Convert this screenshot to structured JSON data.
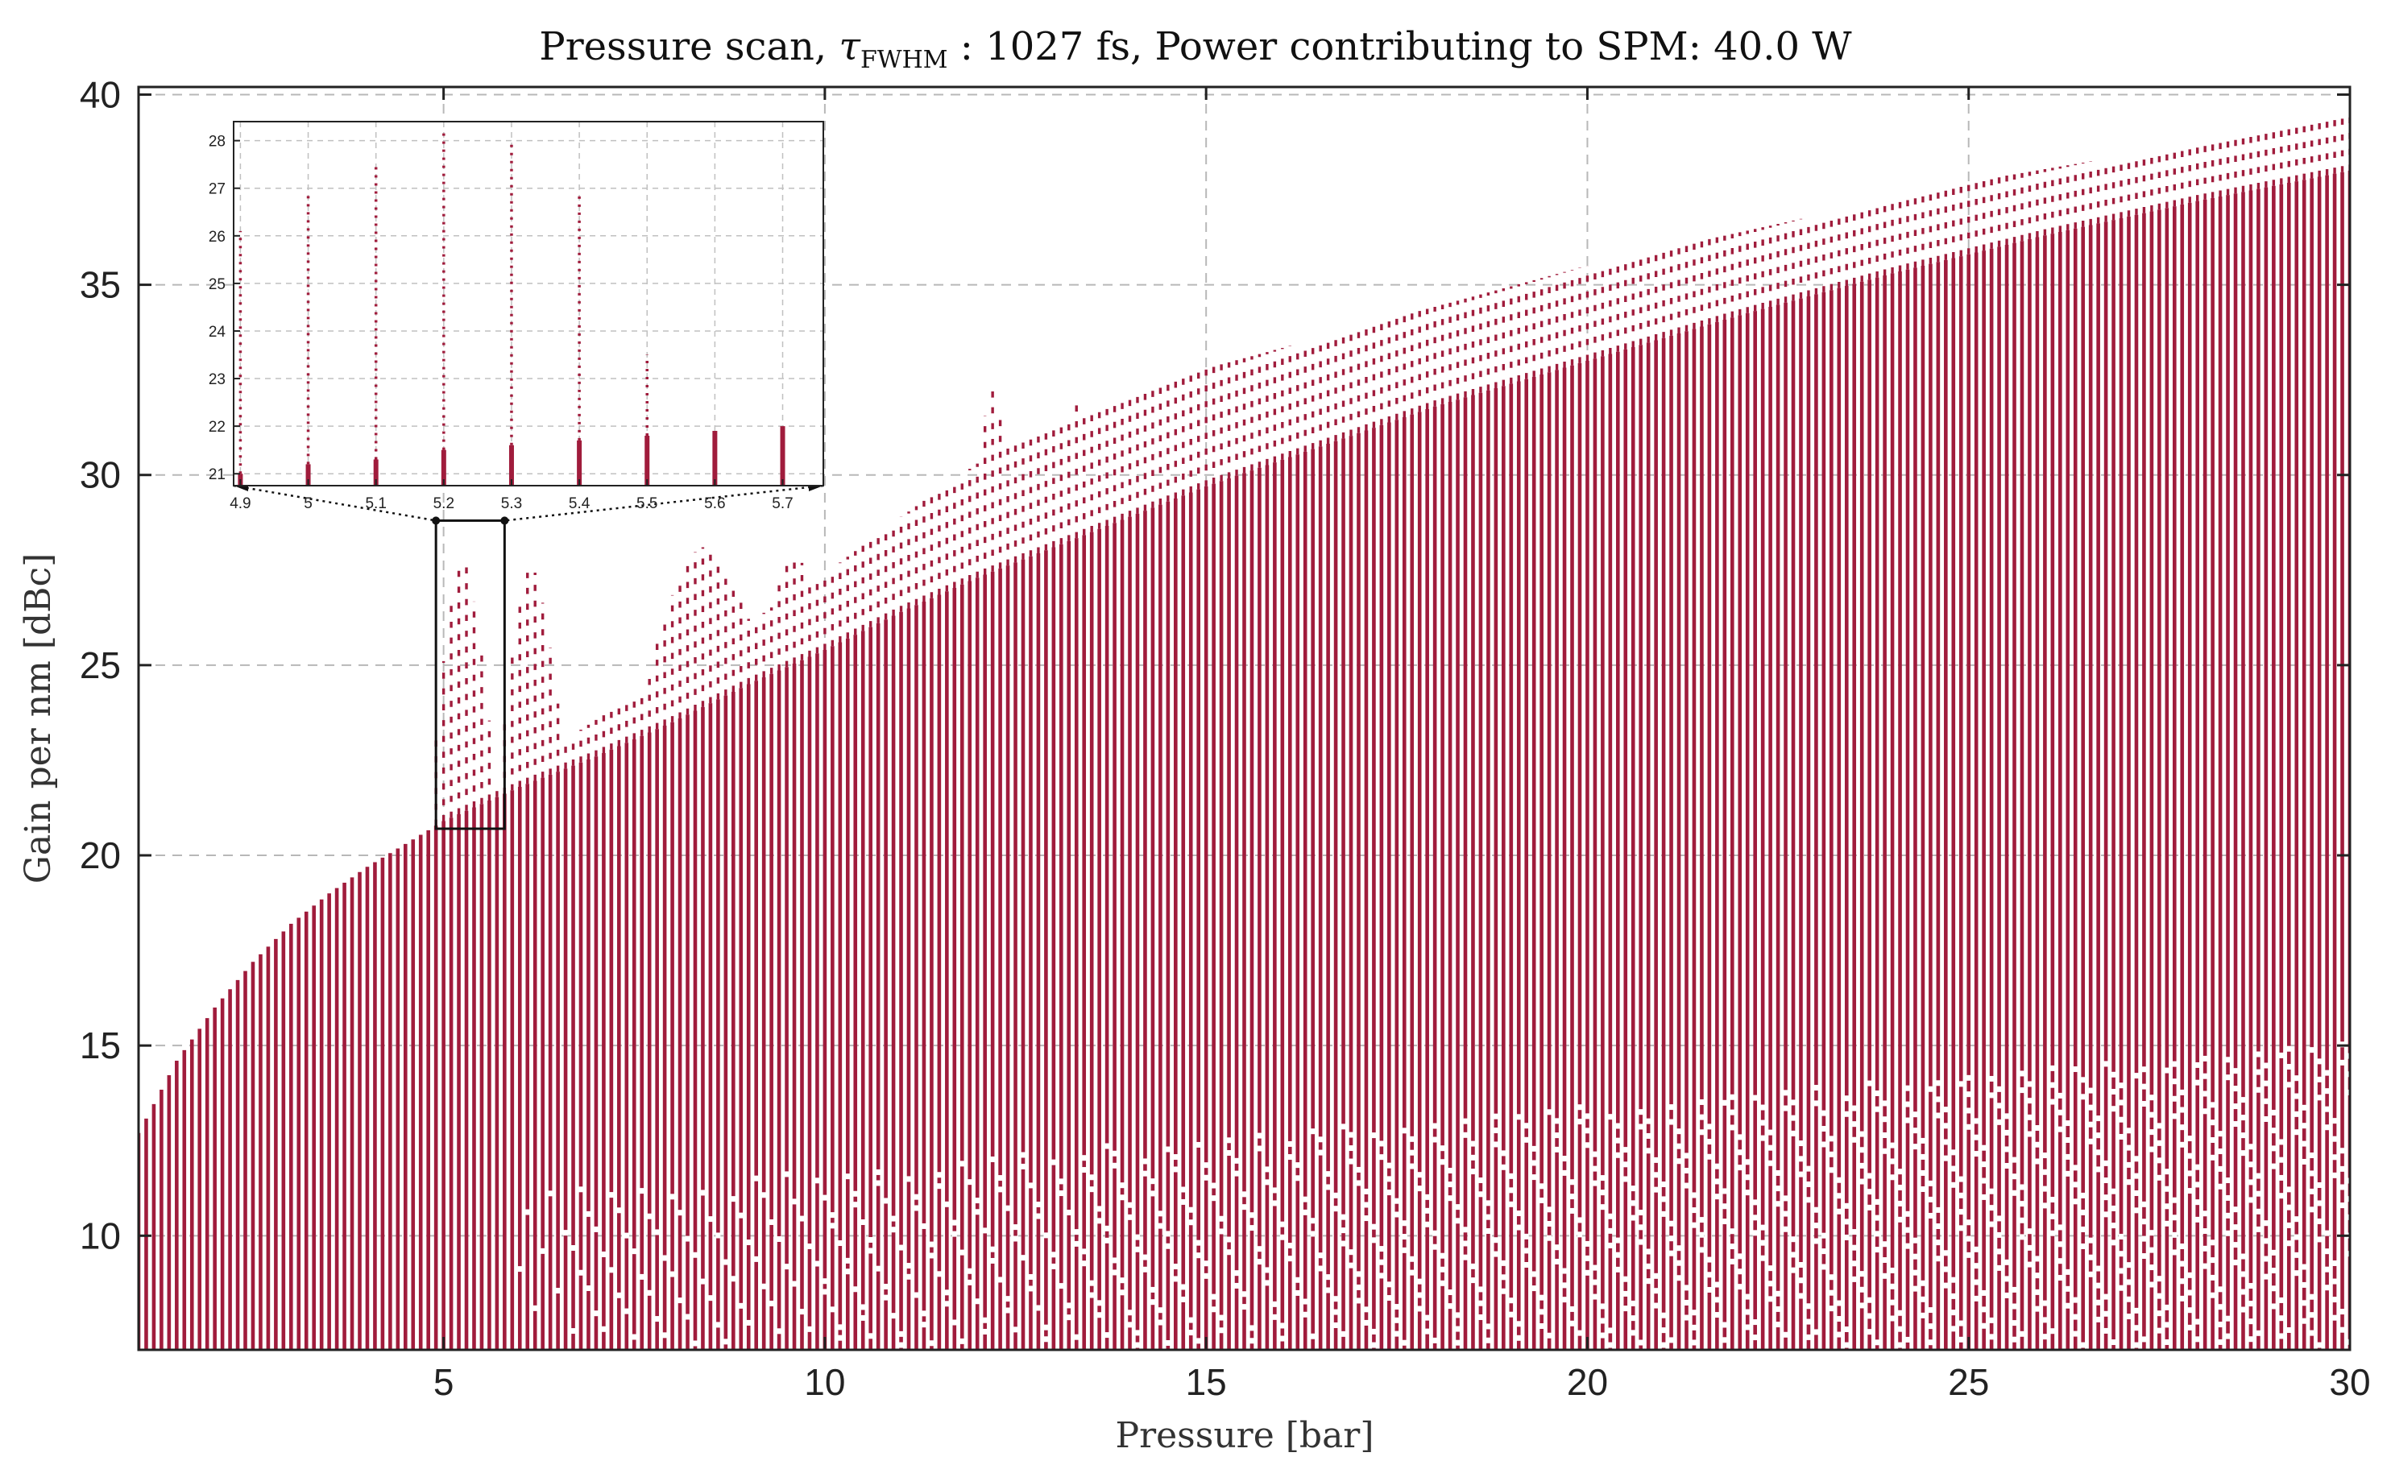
{
  "chart_data": {
    "type": "scatter",
    "title_prefix": "Pressure scan, ",
    "title_symbol": "τ",
    "title_subscript": "FWHM",
    "title_suffix": " : 1027 fs, Power contributing to SPM: 40.0 W",
    "xlabel": "Pressure [bar]",
    "ylabel": "Gain per nm [dBc]",
    "xlim": [
      1,
      30
    ],
    "ylim": [
      7,
      40.2
    ],
    "xticks": [
      5,
      10,
      15,
      20,
      25,
      30
    ],
    "yticks": [
      10,
      15,
      20,
      25,
      30,
      35,
      40
    ],
    "grid": true,
    "color": "#a01c3c",
    "pressure_step": 0.1,
    "y_floor": 7,
    "envelope": {
      "x": [
        1.0,
        1.5,
        2.0,
        2.5,
        3.0,
        3.5,
        4.0,
        4.5,
        5.0,
        6.0,
        7.0,
        8.0,
        9.0,
        10.0,
        11.0,
        12.0,
        13.0,
        14.0,
        15.0,
        16.0,
        17.0,
        18.0,
        19.0,
        20.0,
        22.0,
        24.0,
        26.0,
        28.0,
        30.0
      ],
      "y": [
        12.7,
        14.6,
        16.0,
        17.2,
        18.2,
        19.0,
        19.7,
        20.3,
        20.9,
        21.8,
        22.6,
        23.5,
        24.5,
        25.4,
        26.4,
        27.3,
        28.1,
        28.9,
        29.7,
        30.4,
        31.1,
        31.8,
        32.4,
        33.0,
        34.2,
        35.3,
        36.3,
        37.2,
        38.0
      ]
    },
    "upper_envelope": {
      "x": [
        1.0,
        5.0,
        10.0,
        11.0,
        12.0,
        13.0,
        15.0,
        20.0,
        25.0,
        30.0
      ],
      "y": [
        12.7,
        21.0,
        27.4,
        28.9,
        30.3,
        31.3,
        32.8,
        35.5,
        37.7,
        39.4
      ]
    },
    "peaks": [
      {
        "x": 5.25,
        "width": 0.45,
        "y": 27.8
      },
      {
        "x": 6.15,
        "width": 0.45,
        "y": 27.6
      },
      {
        "x": 8.4,
        "width": 0.9,
        "y": 28.1
      },
      {
        "x": 9.6,
        "width": 0.5,
        "y": 27.9
      },
      {
        "x": 12.2,
        "width": 0.35,
        "y": 32.2
      },
      {
        "x": 13.3,
        "width": 0.25,
        "y": 32.0
      }
    ],
    "zoom_box": {
      "xlim": [
        4.9,
        5.8
      ],
      "ylim": [
        20.7,
        28.8
      ]
    },
    "inset": {
      "xlim": [
        4.89,
        5.76
      ],
      "ylim": [
        20.75,
        28.4
      ],
      "xticks": [
        4.9,
        5,
        5.1,
        5.2,
        5.3,
        5.4,
        5.5,
        5.6,
        5.7
      ],
      "xtick_labels": [
        "4.9",
        "5",
        "5.1",
        "5.2",
        "5.3",
        "5.4",
        "5.5",
        "5.6",
        "5.7"
      ],
      "yticks": [
        21,
        22,
        23,
        24,
        25,
        26,
        27,
        28
      ],
      "stems": [
        {
          "x": 4.9,
          "top": 26.1,
          "base": 21.0
        },
        {
          "x": 5.0,
          "top": 26.9,
          "base": 21.2
        },
        {
          "x": 5.1,
          "top": 27.5,
          "base": 21.3
        },
        {
          "x": 5.2,
          "top": 28.2,
          "base": 21.5
        },
        {
          "x": 5.3,
          "top": 28.0,
          "base": 21.6
        },
        {
          "x": 5.4,
          "top": 26.9,
          "base": 21.7
        },
        {
          "x": 5.5,
          "top": 23.5,
          "base": 21.8
        },
        {
          "x": 5.6,
          "top": 21.9,
          "base": 21.9
        },
        {
          "x": 5.7,
          "top": 22.0,
          "base": 22.0
        }
      ]
    }
  }
}
